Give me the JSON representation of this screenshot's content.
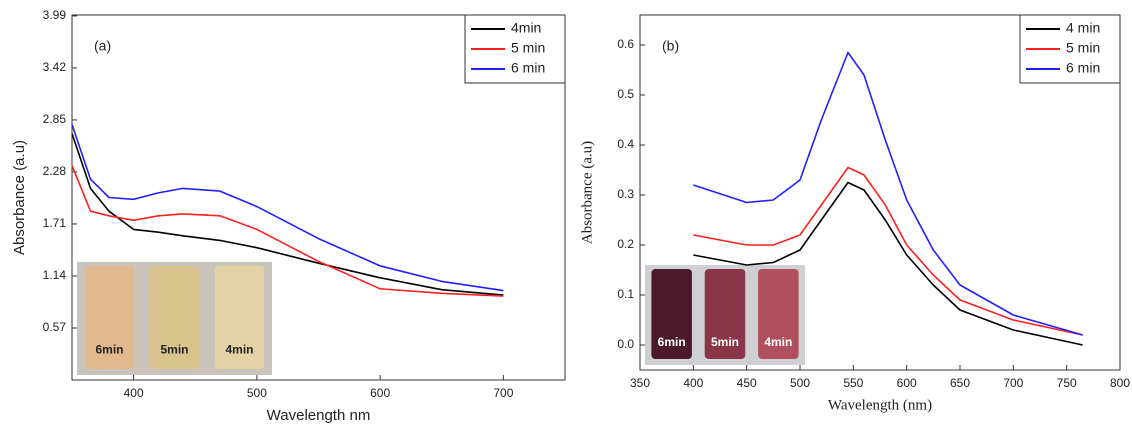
{
  "chart_data": [
    {
      "type": "line",
      "panel_label": "(a)",
      "xlabel": "Wavelength nm",
      "ylabel": "Absorbance (a.u)",
      "xlim": [
        350,
        750
      ],
      "xticks": [
        400,
        500,
        600,
        700
      ],
      "ylim": [
        0,
        4.0
      ],
      "yticks": [
        0.57,
        1.14,
        1.71,
        2.28,
        2.85,
        3.42,
        3.99
      ],
      "legend": "upper right",
      "inset_labels": [
        "6min",
        "5min",
        "4min"
      ],
      "x": [
        350,
        365,
        380,
        400,
        420,
        440,
        470,
        500,
        550,
        600,
        650,
        700
      ],
      "series": [
        {
          "name": "4min",
          "color": "#000000",
          "values": [
            2.7,
            2.1,
            1.85,
            1.65,
            1.62,
            1.58,
            1.53,
            1.45,
            1.28,
            1.12,
            0.99,
            0.93
          ]
        },
        {
          "name": "5 min",
          "color": "#ff2020",
          "values": [
            2.35,
            1.85,
            1.8,
            1.75,
            1.8,
            1.82,
            1.8,
            1.65,
            1.3,
            1.0,
            0.95,
            0.92
          ]
        },
        {
          "name": "6 min",
          "color": "#2020ff",
          "values": [
            2.8,
            2.2,
            2.0,
            1.98,
            2.05,
            2.1,
            2.07,
            1.9,
            1.55,
            1.25,
            1.08,
            0.98
          ]
        }
      ]
    },
    {
      "type": "line",
      "panel_label": "(b)",
      "xlabel": "Wavelength (nm)",
      "ylabel": "Absorbance (a.u)",
      "xlim": [
        350,
        800
      ],
      "xticks": [
        350,
        400,
        450,
        500,
        550,
        600,
        650,
        700,
        750,
        800
      ],
      "ylim": [
        -0.05,
        0.66
      ],
      "yticks": [
        {
          "value": 0,
          "label": "0.0"
        },
        0.1,
        0.2,
        0.3,
        0.4,
        0.5,
        0.6
      ],
      "legend": "upper right",
      "inset_labels": [
        "6min",
        "5min",
        "4min"
      ],
      "x": [
        400,
        450,
        475,
        500,
        520,
        545,
        560,
        580,
        600,
        625,
        650,
        700,
        765
      ],
      "series": [
        {
          "name": "4 min",
          "color": "#000000",
          "values": [
            0.18,
            0.16,
            0.165,
            0.19,
            0.25,
            0.325,
            0.31,
            0.25,
            0.18,
            0.12,
            0.07,
            0.03,
            0.0
          ]
        },
        {
          "name": "5 min",
          "color": "#ff2020",
          "values": [
            0.22,
            0.2,
            0.2,
            0.22,
            0.28,
            0.355,
            0.34,
            0.28,
            0.2,
            0.14,
            0.09,
            0.05,
            0.02
          ]
        },
        {
          "name": "6 min",
          "color": "#2020ff",
          "values": [
            0.32,
            0.285,
            0.29,
            0.33,
            0.45,
            0.585,
            0.54,
            0.41,
            0.29,
            0.19,
            0.12,
            0.06,
            0.02
          ]
        }
      ]
    }
  ]
}
